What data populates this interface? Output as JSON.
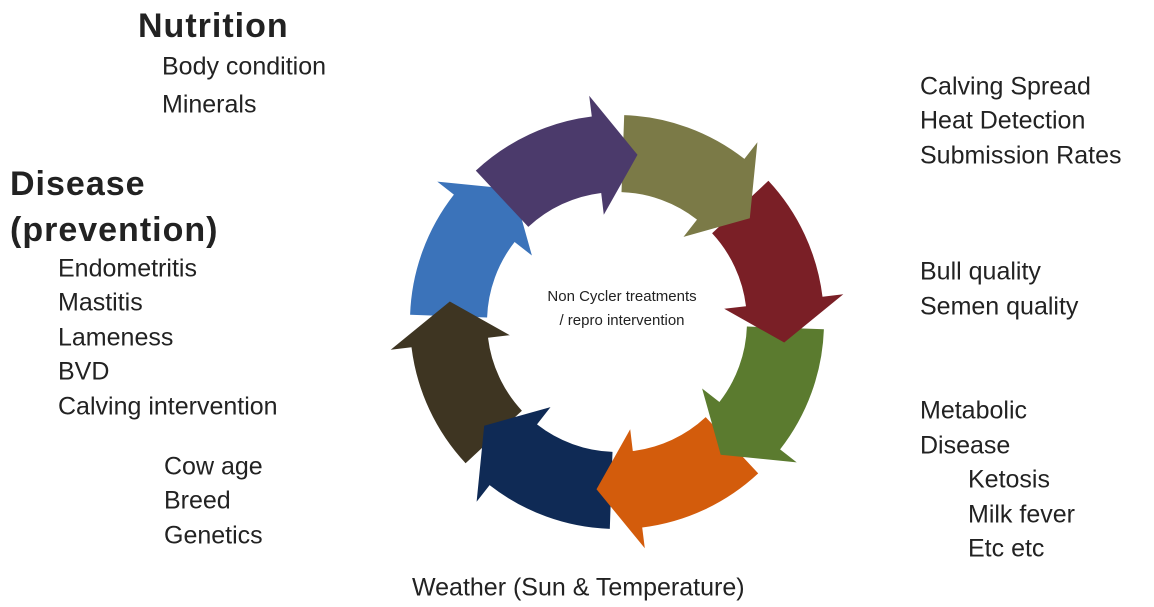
{
  "nutrition": {
    "title": "Nutrition",
    "items": [
      "Body condition",
      "Minerals"
    ]
  },
  "disease": {
    "title": [
      "Disease",
      "(prevention)"
    ],
    "items": [
      "Endometritis",
      "Mastitis",
      "Lameness",
      "BVD",
      "Calving intervention"
    ]
  },
  "cow": {
    "items": [
      "Cow age",
      "Breed",
      "Genetics"
    ]
  },
  "heat": {
    "items": [
      "Calving Spread",
      "Heat Detection",
      "Submission Rates"
    ]
  },
  "bull": {
    "items": [
      "Bull quality",
      "Semen quality"
    ]
  },
  "metabolic": {
    "items": [
      "Metabolic",
      "Disease"
    ],
    "subitems": [
      "Ketosis",
      "Milk fever",
      "Etc etc"
    ]
  },
  "center": {
    "lines": [
      "Non Cycler treatments",
      "/ repro intervention"
    ]
  },
  "bottom": "Weather (Sun & Temperature)"
}
